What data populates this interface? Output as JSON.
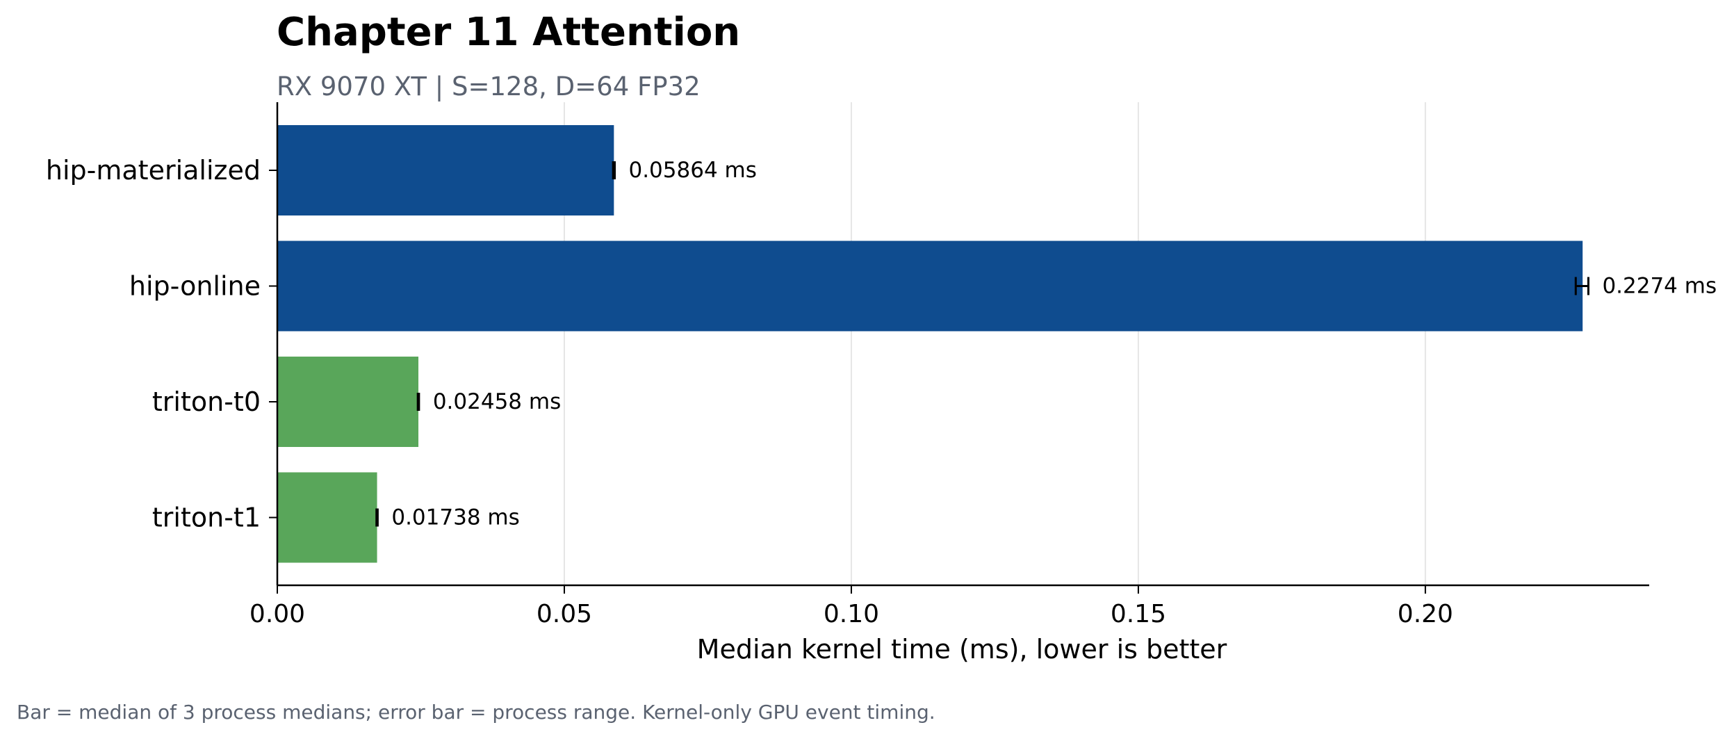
{
  "header": {
    "title": "Chapter 11 Attention",
    "subtitle": "RX 9070 XT | S=128, D=64 FP32"
  },
  "footnote": "Bar = median of 3 process medians; error bar = process range. Kernel-only GPU event timing.",
  "colors": {
    "hip": "#0f4c8f",
    "triton": "#59a65a",
    "grid": "#e6e6e6",
    "axis": "#000000"
  },
  "chart_data": {
    "type": "bar",
    "orientation": "horizontal",
    "title": "Chapter 11 Attention",
    "subtitle": "RX 9070 XT | S=128, D=64 FP32",
    "xlabel": "Median kernel time (ms), lower is better",
    "ylabel": "",
    "xlim": [
      0,
      0.239
    ],
    "x_ticks": [
      0.0,
      0.05,
      0.1,
      0.15,
      0.2
    ],
    "x_tick_labels": [
      "0.00",
      "0.05",
      "0.10",
      "0.15",
      "0.20"
    ],
    "grid": "vertical",
    "categories": [
      "hip-materialized",
      "hip-online",
      "triton-t0",
      "triton-t1"
    ],
    "values": [
      0.05864,
      0.2274,
      0.02458,
      0.01738
    ],
    "error_range": [
      [
        0.0585,
        0.05878
      ],
      [
        0.2262,
        0.2284
      ],
      [
        0.02448,
        0.02468
      ],
      [
        0.01728,
        0.01748
      ]
    ],
    "data_labels": [
      "0.05864 ms",
      "0.2274 ms",
      "0.02458 ms",
      "0.01738 ms"
    ],
    "bar_colors": [
      "#0f4c8f",
      "#0f4c8f",
      "#59a65a",
      "#59a65a"
    ]
  }
}
